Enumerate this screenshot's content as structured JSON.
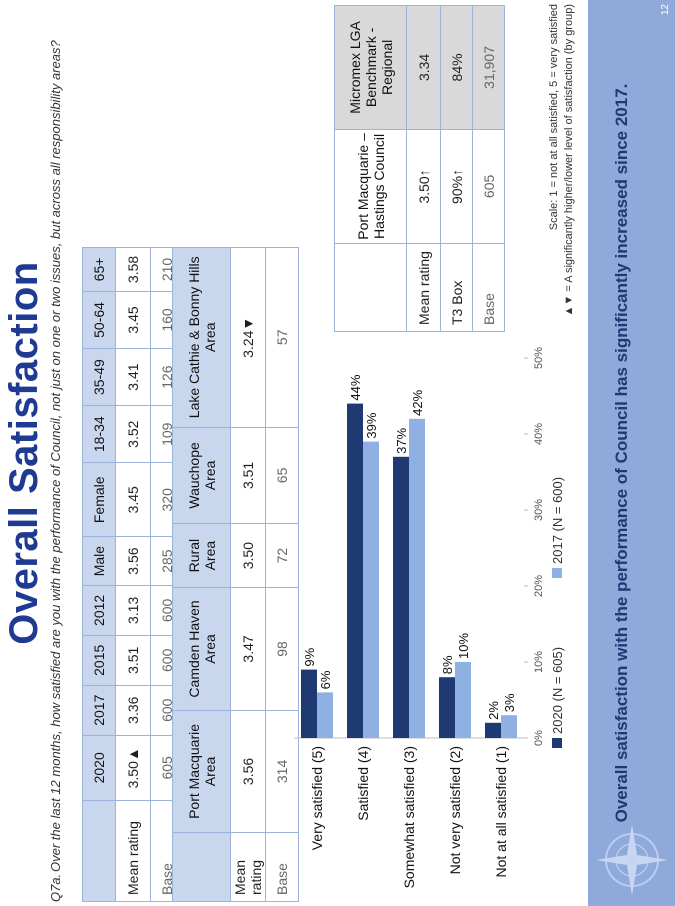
{
  "title": "Overall Satisfaction",
  "question": {
    "number": "Q7a.",
    "text": "Over the last 12 months, how satisfied are you with the performance of Council, not just on one or two issues, but across all responsibility areas?"
  },
  "demographics_table": {
    "headers": [
      "",
      "2020",
      "2017",
      "2015",
      "2012",
      "Male",
      "Female",
      "18-34",
      "35-49",
      "50-64",
      "65+"
    ],
    "rows": [
      {
        "label": "Mean rating",
        "values": [
          "3.50▲",
          "3.36",
          "3.51",
          "3.13",
          "3.56",
          "3.45",
          "3.52",
          "3.41",
          "3.45",
          "3.58"
        ]
      },
      {
        "label": "Base",
        "values": [
          "605",
          "600",
          "600",
          "600",
          "285",
          "320",
          "109",
          "126",
          "160",
          "210"
        ]
      }
    ]
  },
  "area_table": {
    "headers": [
      "",
      "Port Macquarie Area",
      "Camden Haven Area",
      "Rural Area",
      "Wauchope Area",
      "Lake Cathie & Bonny Hills Area"
    ],
    "rows": [
      {
        "label": "Mean rating",
        "values": [
          "3.56",
          "3.47",
          "3.50",
          "3.51",
          "3.24▼"
        ]
      },
      {
        "label": "Base",
        "values": [
          "314",
          "98",
          "72",
          "65",
          "57"
        ]
      }
    ]
  },
  "benchmark_table": {
    "headers": [
      "",
      "Port Macquarie – Hastings Council",
      "Micromex LGA Benchmark - Regional"
    ],
    "rows": [
      {
        "label": "Mean rating",
        "values": [
          "3.50↑",
          "3.34"
        ]
      },
      {
        "label": "T3 Box",
        "values": [
          "90%↑",
          "84%"
        ]
      },
      {
        "label": "Base",
        "values": [
          "605",
          "31,907"
        ]
      }
    ]
  },
  "chart_data": {
    "type": "bar",
    "orientation": "horizontal",
    "categories": [
      "Very satisfied (5)",
      "Satisfied (4)",
      "Somewhat satisfied (3)",
      "Not very satisfied (2)",
      "Not at all satisfied (1)"
    ],
    "series": [
      {
        "name": "2020 (N = 605)",
        "values": [
          9,
          44,
          37,
          8,
          2
        ],
        "labels": [
          "9%",
          "44%",
          "37%",
          "8%",
          "2%"
        ],
        "color": "#1f3a73"
      },
      {
        "name": "2017 (N = 600)",
        "values": [
          6,
          39,
          42,
          10,
          3
        ],
        "labels": [
          "6%",
          "39%",
          "42%",
          "10%",
          "3%"
        ],
        "color": "#8eb0e3"
      }
    ],
    "xlim": [
      0,
      50
    ],
    "xticks": [
      "0%",
      "10%",
      "20%",
      "30%",
      "40%",
      "50%"
    ],
    "legend_position": "bottom"
  },
  "notes": {
    "scale": "Scale: 1 = not at all satisfied, 5 = very satisfied",
    "sig": "▲▼ = A significantly higher/lower level of satisfaction (by group)"
  },
  "banner": "Overall satisfaction with the performance of Council has significantly increased since 2017.",
  "page_number": "12",
  "colors": {
    "title": "#1f3a93",
    "banner": "#8fa9da",
    "series_2020": "#1f3a73",
    "series_2017": "#8eb0e3"
  }
}
